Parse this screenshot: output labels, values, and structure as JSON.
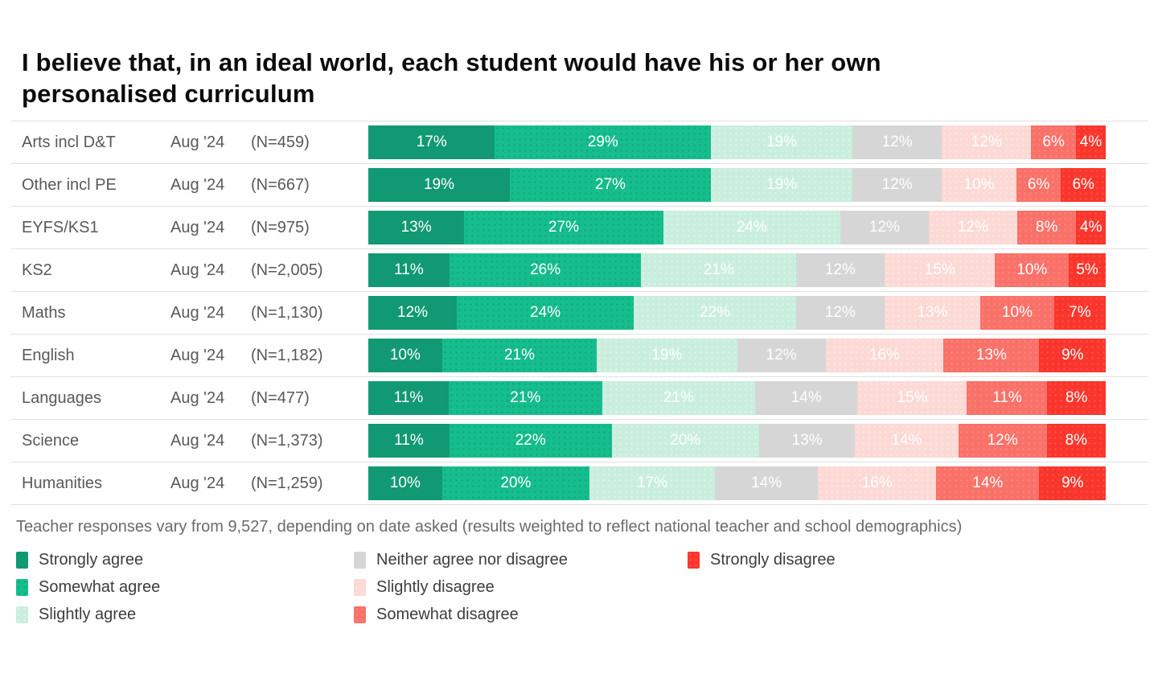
{
  "title": {
    "line1": "I believe that, in an ideal world, each student would have his or her own",
    "line2": "personalised curriculum"
  },
  "footnote": "Teacher responses vary from 9,527, depending on date asked (results weighted to reflect national teacher and school demographics)",
  "chart_data": {
    "type": "bar",
    "stacked": true,
    "orientation": "horizontal",
    "unit": "%",
    "title": "I believe that, in an ideal world, each student would have his or her own personalised curriculum",
    "categories": [
      "Arts incl D&T",
      "Other incl PE",
      "EYFS/KS1",
      "KS2",
      "Maths",
      "English",
      "Languages",
      "Science",
      "Humanities"
    ],
    "category_meta": [
      {
        "date": "Aug '24",
        "n": "(N=459)"
      },
      {
        "date": "Aug '24",
        "n": "(N=667)"
      },
      {
        "date": "Aug '24",
        "n": "(N=975)"
      },
      {
        "date": "Aug '24",
        "n": "(N=2,005)"
      },
      {
        "date": "Aug '24",
        "n": "(N=1,130)"
      },
      {
        "date": "Aug '24",
        "n": "(N=1,182)"
      },
      {
        "date": "Aug '24",
        "n": "(N=477)"
      },
      {
        "date": "Aug '24",
        "n": "(N=1,373)"
      },
      {
        "date": "Aug '24",
        "n": "(N=1,259)"
      }
    ],
    "series": [
      {
        "name": "Strongly agree",
        "color": "#119973",
        "texture": "none",
        "values": [
          17,
          19,
          13,
          11,
          12,
          10,
          11,
          11,
          10
        ]
      },
      {
        "name": "Somewhat agree",
        "color": "#16bd8d",
        "texture": "dark",
        "values": [
          29,
          27,
          27,
          26,
          24,
          21,
          21,
          22,
          20
        ]
      },
      {
        "name": "Slightly agree",
        "color": "#c9eedd",
        "texture": "light",
        "values": [
          19,
          19,
          24,
          21,
          22,
          19,
          21,
          20,
          17
        ]
      },
      {
        "name": "Neither agree nor disagree",
        "color": "#d6d6d6",
        "texture": "none",
        "values": [
          12,
          12,
          12,
          12,
          12,
          12,
          14,
          13,
          14
        ]
      },
      {
        "name": "Slightly disagree",
        "color": "#fcd9d5",
        "texture": "light",
        "values": [
          12,
          10,
          12,
          15,
          13,
          16,
          15,
          14,
          16
        ]
      },
      {
        "name": "Somewhat disagree",
        "color": "#f97168",
        "texture": "faint",
        "values": [
          6,
          6,
          8,
          10,
          10,
          13,
          11,
          12,
          14
        ]
      },
      {
        "name": "Strongly disagree",
        "color": "#fa352b",
        "texture": "faint",
        "values": [
          4,
          6,
          4,
          5,
          7,
          9,
          8,
          8,
          9
        ]
      }
    ],
    "value_labels": "inside, white, suffixed with %",
    "legend_position": "bottom"
  },
  "legend": {
    "columns": [
      [
        0,
        1,
        2
      ],
      [
        3,
        4,
        5
      ],
      [
        6
      ]
    ]
  },
  "colors": {
    "title": "#0b0b0b",
    "row_label": "#595959",
    "footnote": "#6b6b6b",
    "separator": "#e0e0e0",
    "bar_label": "#ffffff",
    "legend_text": "#3d3d3d",
    "background": "#ffffff"
  }
}
